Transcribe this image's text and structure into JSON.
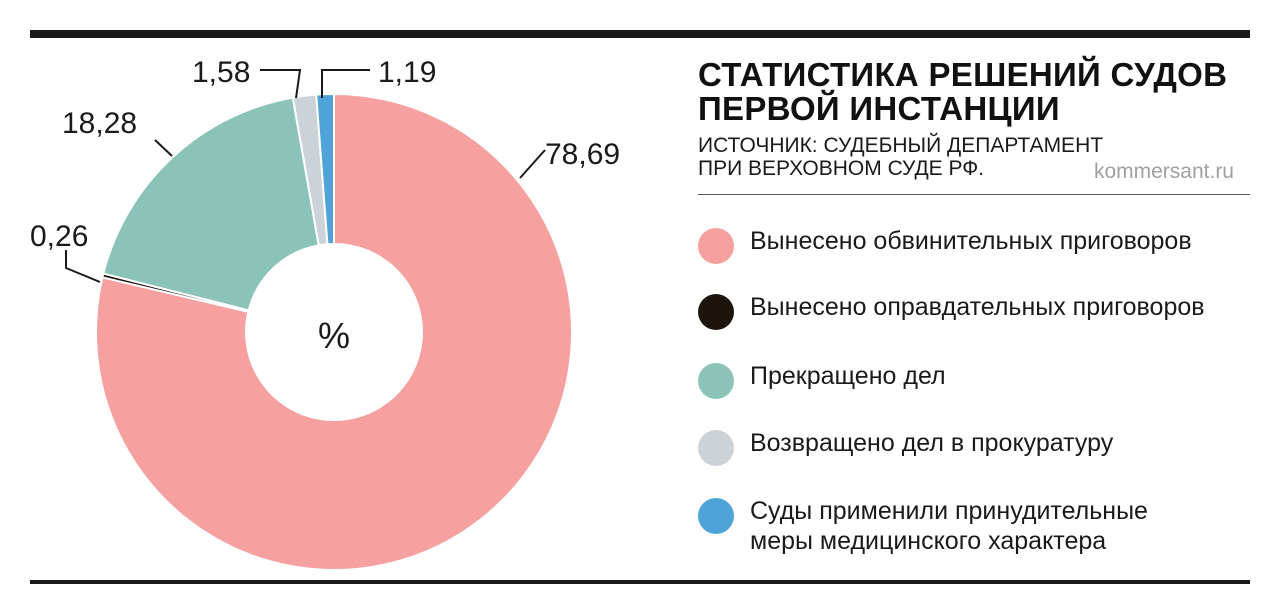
{
  "chart_data": {
    "type": "pie",
    "title": "СТАТИСТИКА РЕШЕНИЙ СУДОВ ПЕРВОЙ ИНСТАНЦИИ",
    "center_label": "%",
    "source": "ИСТОЧНИК: СУДЕБНЫЙ ДЕПАРТАМЕНТ\nПРИ ВЕРХОВНОМ СУДЕ РФ.",
    "site": "kommersant.ru",
    "value_labels": [
      "78,69",
      "0,26",
      "18,28",
      "1,58",
      "1,19"
    ],
    "slices": [
      {
        "label": "Вынесено обвинительных приговоров",
        "value": 78.69,
        "color": "#f6a0a0"
      },
      {
        "label": "Вынесено оправдательных приговоров",
        "value": 0.26,
        "color": "#1e140e"
      },
      {
        "label": "Прекращено дел",
        "value": 18.28,
        "color": "#8cc3b8"
      },
      {
        "label": "Возвращено дел в прокуратуру",
        "value": 1.58,
        "color": "#ccd3d8"
      },
      {
        "label": "Суды применили принудительные\nмеры медицинского характера",
        "value": 1.19,
        "color": "#4fa3d8"
      }
    ],
    "legend_placement": "right"
  }
}
